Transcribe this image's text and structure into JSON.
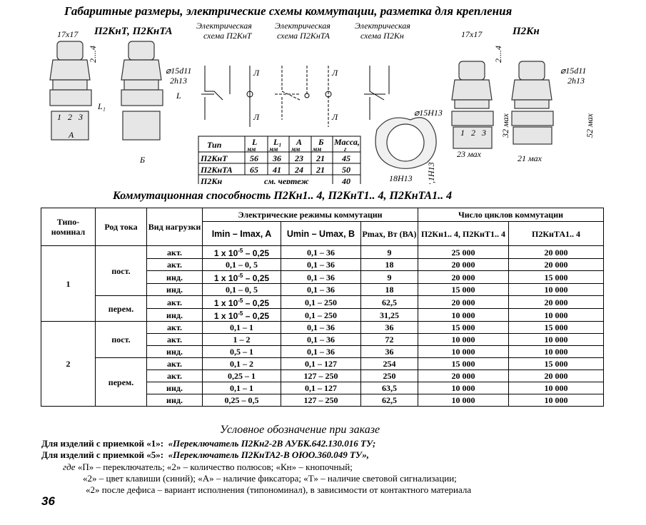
{
  "header": {
    "title": "Габаритные размеры, электрические схемы коммутации, разметка для крепления"
  },
  "drawing": {
    "left_title": "П2КнТ, П2КнТА",
    "right_title": "П2Кн",
    "dim_17x17": "17x17",
    "dim_2_4": "2....4",
    "dim_d15d11": "⌀15d11",
    "dim_2h13": "2h13",
    "dim_L": "L",
    "dim_L1": "L₁",
    "dim_A": "A",
    "dim_B": "Б",
    "pins": [
      "1",
      "2",
      "3"
    ],
    "dim_32max": "32 мах",
    "dim_52max": "52 мах",
    "dim_23max": "23 мах",
    "dim_21max": "21 мах",
    "dim_d15H13": "⌀15H13",
    "dim_18H13": "18H13",
    "dim_2_1H13": "2,1H13",
    "schemes": [
      {
        "line1": "Электрическая",
        "line2": "схема П2КнТ"
      },
      {
        "line1": "Электрическая",
        "line2": "схема П2КнТА"
      },
      {
        "line1": "Электрическая",
        "line2": "схема П2Кн"
      }
    ],
    "lamp_label": "Л",
    "dims_table": {
      "headers": [
        {
          "main": "Тип",
          "unit": ""
        },
        {
          "main": "L",
          "unit": "мм"
        },
        {
          "main": "L₁",
          "unit": "мм"
        },
        {
          "main": "A",
          "unit": "мм"
        },
        {
          "main": "Б",
          "unit": "мм"
        },
        {
          "main": "Масса,",
          "unit": "г"
        }
      ],
      "rows": [
        [
          "П2КнТ",
          "56",
          "36",
          "23",
          "21",
          "45"
        ],
        [
          "П2КнТА",
          "65",
          "41",
          "24",
          "21",
          "50"
        ]
      ],
      "last_row": {
        "type": "П2Кн",
        "merged": "см. чертеж",
        "mass": "40"
      }
    }
  },
  "section_title": "Коммутационная способность П2Кн1.. 4,  П2КнТ1.. 4, П2КнТА1.. 4",
  "table": {
    "headers": {
      "typonominal": "Типо-номинал",
      "current_kind": "Род тока",
      "load_kind": "Вид нагрузки",
      "modes_group": "Электрические режимы коммутации",
      "cycles_group": "Число циклов коммутации",
      "imin_imax": "Imin – Imax, A",
      "umin_umax": "Umin – Umax, B",
      "pmax": "Pmax, Вт (ВА)",
      "cycles_1": "П2Кн1.. 4, П2КнТ1.. 4",
      "cycles_2": "П2КнТА1.. 4"
    },
    "groups": [
      {
        "typonominal": "1",
        "currents": [
          {
            "kind": "пост.",
            "rows": [
              {
                "load": "акт.",
                "i": {
                  "base": "1 x 10",
                  "sup": "-5",
                  "tail": " – 0,25"
                },
                "u": "0,1 – 36",
                "p": "9",
                "c1": "25 000",
                "c2": "20 000"
              },
              {
                "load": "акт.",
                "i": {
                  "base": "0,1 – 0, 5"
                },
                "u": "0,1 – 36",
                "p": "18",
                "c1": "20 000",
                "c2": "20 000"
              },
              {
                "load": "инд.",
                "i": {
                  "base": "1 x 10",
                  "sup": "-5",
                  "tail": " – 0,25"
                },
                "u": "0,1 – 36",
                "p": "9",
                "c1": "20 000",
                "c2": "15 000"
              },
              {
                "load": "инд.",
                "i": {
                  "base": "0,1 – 0, 5"
                },
                "u": "0,1 – 36",
                "p": "18",
                "c1": "15 000",
                "c2": "10 000"
              }
            ]
          },
          {
            "kind": "перем.",
            "rows": [
              {
                "load": "акт.",
                "i": {
                  "base": "1 x 10",
                  "sup": "-5",
                  "tail": " – 0,25"
                },
                "u": "0,1 – 250",
                "p": "62,5",
                "c1": "20 000",
                "c2": "20 000"
              },
              {
                "load": "инд.",
                "i": {
                  "base": "1 x 10",
                  "sup": "-5",
                  "tail": " – 0,25"
                },
                "u": "0,1 – 250",
                "p": "31,25",
                "c1": "10 000",
                "c2": "10 000"
              }
            ]
          }
        ]
      },
      {
        "typonominal": "2",
        "currents": [
          {
            "kind": "пост.",
            "rows": [
              {
                "load": "акт.",
                "i": {
                  "base": "0,1 – 1"
                },
                "u": "0,1 – 36",
                "p": "36",
                "c1": "15 000",
                "c2": "15 000"
              },
              {
                "load": "акт.",
                "i": {
                  "base": "1 – 2"
                },
                "u": "0,1 – 36",
                "p": "72",
                "c1": "10 000",
                "c2": "10 000"
              },
              {
                "load": "инд.",
                "i": {
                  "base": "0,5 – 1"
                },
                "u": "0,1 – 36",
                "p": "36",
                "c1": "10 000",
                "c2": "10 000"
              }
            ]
          },
          {
            "kind": "перем.",
            "rows": [
              {
                "load": "акт.",
                "i": {
                  "base": "0,1 – 2"
                },
                "u": "0,1 – 127",
                "p": "254",
                "c1": "15 000",
                "c2": "15 000"
              },
              {
                "load": "акт.",
                "i": {
                  "base": "0,25 – 1"
                },
                "u": "127 – 250",
                "p": "250",
                "c1": "20 000",
                "c2": "20 000"
              },
              {
                "load": "инд.",
                "i": {
                  "base": "0,1 – 1"
                },
                "u": "0,1 – 127",
                "p": "63,5",
                "c1": "10 000",
                "c2": "10 000"
              },
              {
                "load": "инд.",
                "i": {
                  "base": "0,25 – 0,5"
                },
                "u": "127 – 250",
                "p": "62,5",
                "c1": "10 000",
                "c2": "10 000"
              }
            ]
          }
        ]
      }
    ]
  },
  "order": {
    "title": "Условное обозначение при заказе",
    "line1_label": "Для изделий с приемкой «1»:",
    "line1_value": "«Переключатель П2Кн2-2В  АУБК.642.130.016 ТУ;",
    "line2_label": "Для изделий с приемкой «5»:",
    "line2_value": "«Переключатель П2КнТА2-В ОЮО.360.049 ТУ»,",
    "where": "где",
    "explain1": "«П» – переключатель; «2» – количество полюсов; «Кн» – кнопочный;",
    "explain2": "«2» – цвет клавиши (синий); «А» – наличие фиксатора; «Т» – наличие световой сигнализации;",
    "explain3": "«2» после дефиса – вариант исполнения (типономинал), в зависимости от контактного материала"
  },
  "page_number": "36"
}
